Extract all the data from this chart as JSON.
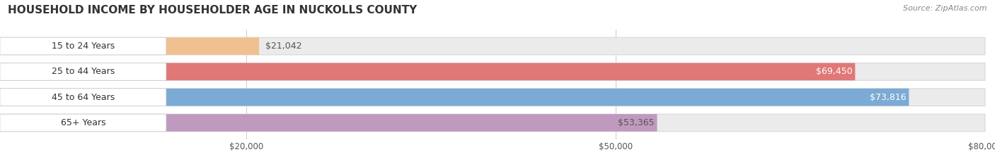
{
  "title": "HOUSEHOLD INCOME BY HOUSEHOLDER AGE IN NUCKOLLS COUNTY",
  "source": "Source: ZipAtlas.com",
  "categories": [
    "15 to 24 Years",
    "25 to 44 Years",
    "45 to 64 Years",
    "65+ Years"
  ],
  "values": [
    21042,
    69450,
    73816,
    53365
  ],
  "bar_colors": [
    "#f0c090",
    "#e07878",
    "#7baad4",
    "#c09abe"
  ],
  "bar_edge_colors": [
    "#d4a060",
    "#c05050",
    "#5a8fb4",
    "#a870a8"
  ],
  "value_label_colors": [
    "#555555",
    "#ffffff",
    "#ffffff",
    "#555555"
  ],
  "xlim": [
    0,
    80000
  ],
  "xticks": [
    20000,
    50000,
    80000
  ],
  "xtick_labels": [
    "$20,000",
    "$50,000",
    "$80,000"
  ],
  "background_color": "#ffffff",
  "bar_bg_color": "#ebebeb",
  "bar_bg_edge_color": "#d8d8d8",
  "title_fontsize": 11,
  "source_fontsize": 8,
  "cat_label_fontsize": 9,
  "value_fontsize": 9,
  "bar_height": 0.68,
  "fig_width": 14.06,
  "fig_height": 2.33,
  "category_label_bg": "#ffffff"
}
